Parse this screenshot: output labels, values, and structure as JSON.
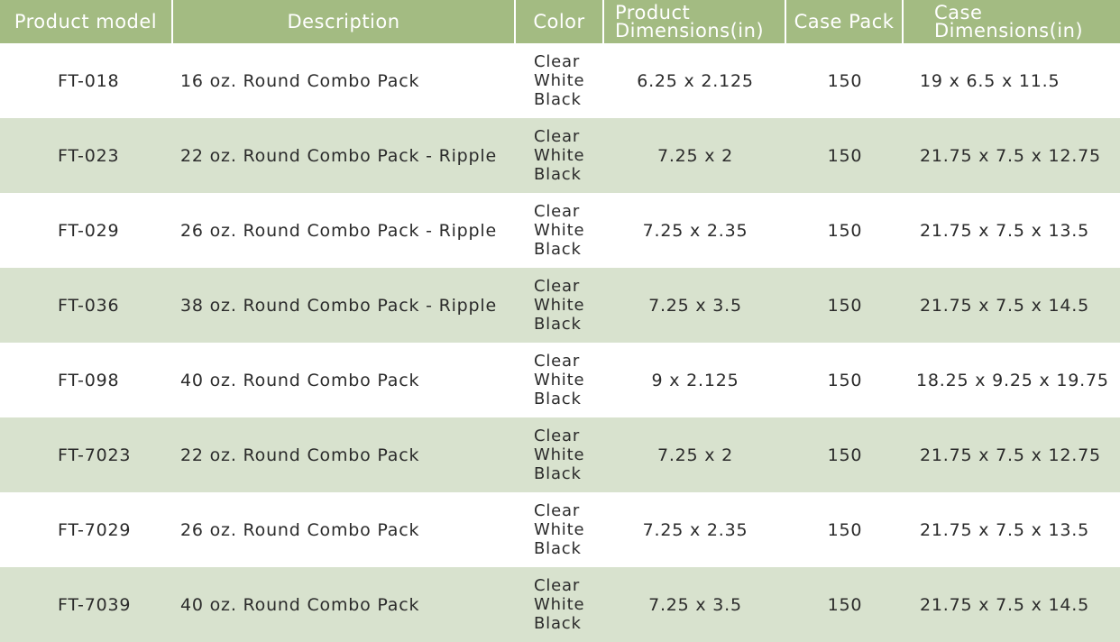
{
  "headers": {
    "model": "Product model",
    "description": "Description",
    "color": "Color",
    "product_dim_line1": "Product",
    "product_dim_line2": "Dimensions(in)",
    "case_pack": "Case Pack",
    "case_dim_line1": "Case",
    "case_dim_line2": "Dimensions(in)"
  },
  "rows": [
    {
      "model": "FT-018",
      "description": "16 oz. Round Combo Pack",
      "colors": [
        "Clear",
        "White",
        "Black"
      ],
      "product_dim": "6.25 x 2.125",
      "case_pack": "150",
      "case_dim": "19 x 6.5 x 11.5"
    },
    {
      "model": "FT-023",
      "description": "22 oz. Round Combo Pack - Ripple",
      "colors": [
        "Clear",
        "White",
        "Black"
      ],
      "product_dim": "7.25 x 2",
      "case_pack": "150",
      "case_dim": "21.75 x 7.5 x 12.75"
    },
    {
      "model": "FT-029",
      "description": "26 oz. Round Combo Pack - Ripple",
      "colors": [
        "Clear",
        "White",
        "Black"
      ],
      "product_dim": "7.25 x 2.35",
      "case_pack": "150",
      "case_dim": "21.75 x 7.5 x 13.5"
    },
    {
      "model": "FT-036",
      "description": "38 oz. Round Combo Pack - Ripple",
      "colors": [
        "Clear",
        "White",
        "Black"
      ],
      "product_dim": "7.25 x 3.5",
      "case_pack": "150",
      "case_dim": "21.75 x 7.5 x 14.5"
    },
    {
      "model": "FT-098",
      "description": "40 oz. Round Combo Pack",
      "colors": [
        "Clear",
        "White",
        "Black"
      ],
      "product_dim": "9 x 2.125",
      "case_pack": "150",
      "case_dim": "18.25 x 9.25 x 19.75"
    },
    {
      "model": "FT-7023",
      "description": "22 oz. Round Combo Pack",
      "colors": [
        "Clear",
        "White",
        "Black"
      ],
      "product_dim": "7.25 x 2",
      "case_pack": "150",
      "case_dim": "21.75 x 7.5 x 12.75"
    },
    {
      "model": "FT-7029",
      "description": "26 oz. Round Combo Pack",
      "colors": [
        "Clear",
        "White",
        "Black"
      ],
      "product_dim": "7.25 x 2.35",
      "case_pack": "150",
      "case_dim": "21.75 x 7.5 x 13.5"
    },
    {
      "model": "FT-7039",
      "description": "40 oz. Round Combo Pack",
      "colors": [
        "Clear",
        "White",
        "Black"
      ],
      "product_dim": "7.25 x 3.5",
      "case_pack": "150",
      "case_dim": "21.75 x 7.5 x 14.5"
    }
  ],
  "theme": {
    "header_bg": "#a3bb82",
    "header_text": "#ffffff",
    "alt_row_bg": "#d8e2ce",
    "row_bg": "#ffffff",
    "text": "#2b2b2b"
  }
}
